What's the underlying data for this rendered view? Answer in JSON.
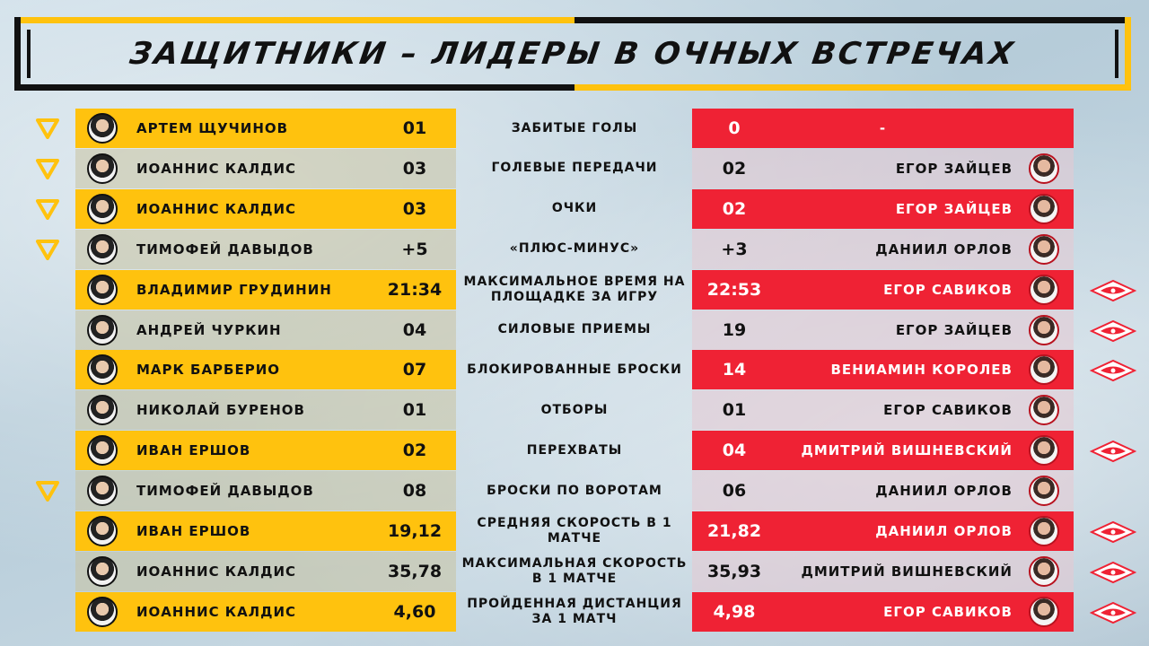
{
  "title": "ЗАЩИТНИКИ – ЛИДЕРЫ В ОЧНЫХ ВСТРЕЧАХ",
  "colors": {
    "left_team": "#ffc20e",
    "right_team": "#ef2234",
    "dark": "#111111"
  },
  "rows": [
    {
      "left_name": "АРТЕМ ЩУЧИНОВ",
      "left_value": "01",
      "stat": "ЗАБИТЫЕ ГОЛЫ",
      "right_value": "0",
      "right_name": "-",
      "left_leader": true,
      "right_leader": false
    },
    {
      "left_name": "ИОАННИС КАЛДИС",
      "left_value": "03",
      "stat": "ГОЛЕВЫЕ ПЕРЕДАЧИ",
      "right_value": "02",
      "right_name": "ЕГОР ЗАЙЦЕВ",
      "left_leader": true,
      "right_leader": false
    },
    {
      "left_name": "ИОАННИС КАЛДИС",
      "left_value": "03",
      "stat": "ОЧКИ",
      "right_value": "02",
      "right_name": "ЕГОР ЗАЙЦЕВ",
      "left_leader": true,
      "right_leader": false
    },
    {
      "left_name": "ТИМОФЕЙ ДАВЫДОВ",
      "left_value": "+5",
      "stat": "«ПЛЮС-МИНУС»",
      "right_value": "+3",
      "right_name": "ДАНИИЛ ОРЛОВ",
      "left_leader": true,
      "right_leader": false
    },
    {
      "left_name": "ВЛАДИМИР ГРУДИНИН",
      "left_value": "21:34",
      "stat": "МАКСИМАЛЬНОЕ ВРЕМЯ НА ПЛОЩАДКЕ ЗА ИГРУ",
      "right_value": "22:53",
      "right_name": "ЕГОР САВИКОВ",
      "left_leader": false,
      "right_leader": true
    },
    {
      "left_name": "АНДРЕЙ ЧУРКИН",
      "left_value": "04",
      "stat": "СИЛОВЫЕ ПРИЕМЫ",
      "right_value": "19",
      "right_name": "ЕГОР ЗАЙЦЕВ",
      "left_leader": false,
      "right_leader": true
    },
    {
      "left_name": "МАРК БАРБЕРИО",
      "left_value": "07",
      "stat": "БЛОКИРОВАННЫЕ БРОСКИ",
      "right_value": "14",
      "right_name": "ВЕНИАМИН КОРОЛЕВ",
      "left_leader": false,
      "right_leader": true
    },
    {
      "left_name": "НИКОЛАЙ БУРЕНОВ",
      "left_value": "01",
      "stat": "ОТБОРЫ",
      "right_value": "01",
      "right_name": "ЕГОР САВИКОВ",
      "left_leader": false,
      "right_leader": false
    },
    {
      "left_name": "ИВАН ЕРШОВ",
      "left_value": "02",
      "stat": "ПЕРЕХВАТЫ",
      "right_value": "04",
      "right_name": "ДМИТРИЙ ВИШНЕВСКИЙ",
      "left_leader": false,
      "right_leader": true
    },
    {
      "left_name": "ТИМОФЕЙ ДАВЫДОВ",
      "left_value": "08",
      "stat": "БРОСКИ ПО ВОРОТАМ",
      "right_value": "06",
      "right_name": "ДАНИИЛ ОРЛОВ",
      "left_leader": true,
      "right_leader": false
    },
    {
      "left_name": "ИВАН ЕРШОВ",
      "left_value": "19,12",
      "stat": "СРЕДНЯЯ СКОРОСТЬ В 1 МАТЧЕ",
      "right_value": "21,82",
      "right_name": "ДАНИИЛ ОРЛОВ",
      "left_leader": false,
      "right_leader": true
    },
    {
      "left_name": "ИОАННИС КАЛДИС",
      "left_value": "35,78",
      "stat": "МАКСИМАЛЬНАЯ СКОРОСТЬ В 1 МАТЧЕ",
      "right_value": "35,93",
      "right_name": "ДМИТРИЙ ВИШНЕВСКИЙ",
      "left_leader": false,
      "right_leader": true
    },
    {
      "left_name": "ИОАННИС КАЛДИС",
      "left_value": "4,60",
      "stat": "ПРОЙДЕННАЯ ДИСТАНЦИЯ ЗА 1 МАТЧ",
      "right_value": "4,98",
      "right_name": "ЕГОР САВИКОВ",
      "left_leader": false,
      "right_leader": true
    }
  ]
}
